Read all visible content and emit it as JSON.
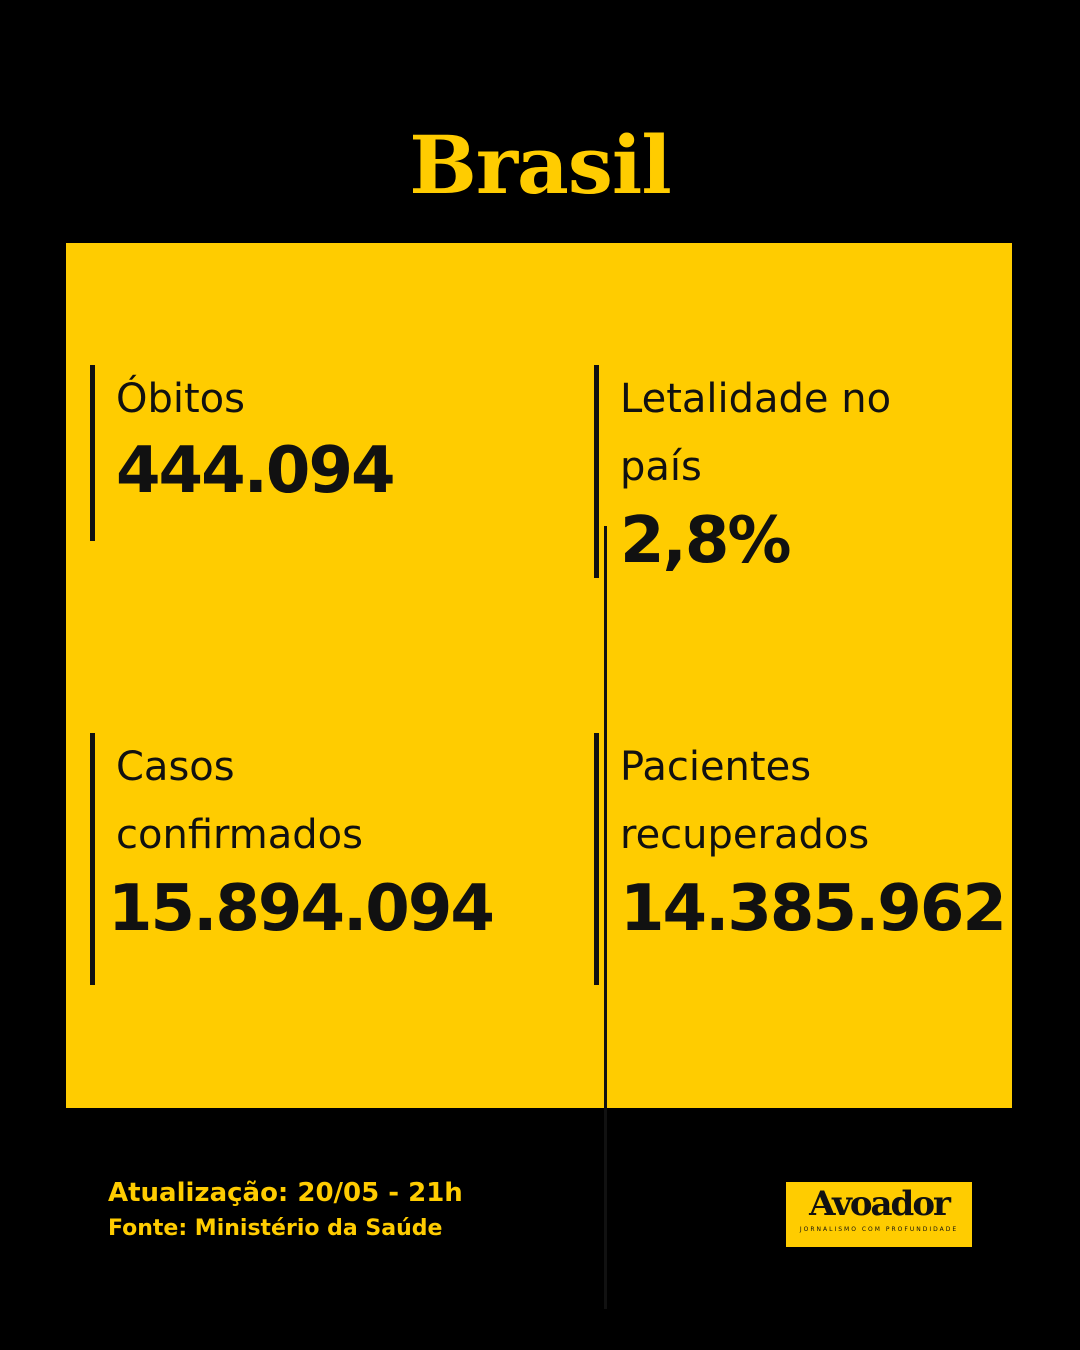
{
  "title": "Brasil",
  "colors": {
    "accent": "#FFCC00",
    "background": "#000000",
    "text": "#111111"
  },
  "stats": [
    {
      "label": "Óbitos",
      "value": "444.094"
    },
    {
      "label": "Letalidade no país",
      "value": "2,8%"
    },
    {
      "label": "Casos confirmados",
      "value": "15.894.094"
    },
    {
      "label": "Pacientes recuperados",
      "value": "14.385.962"
    }
  ],
  "footer": {
    "update": "Atualização: 20/05 - 21h",
    "source": "Fonte: Ministério da Saúde"
  },
  "logo": {
    "name": "Avoador",
    "tagline": "JORNALISMO COM PROFUNDIDADE"
  }
}
